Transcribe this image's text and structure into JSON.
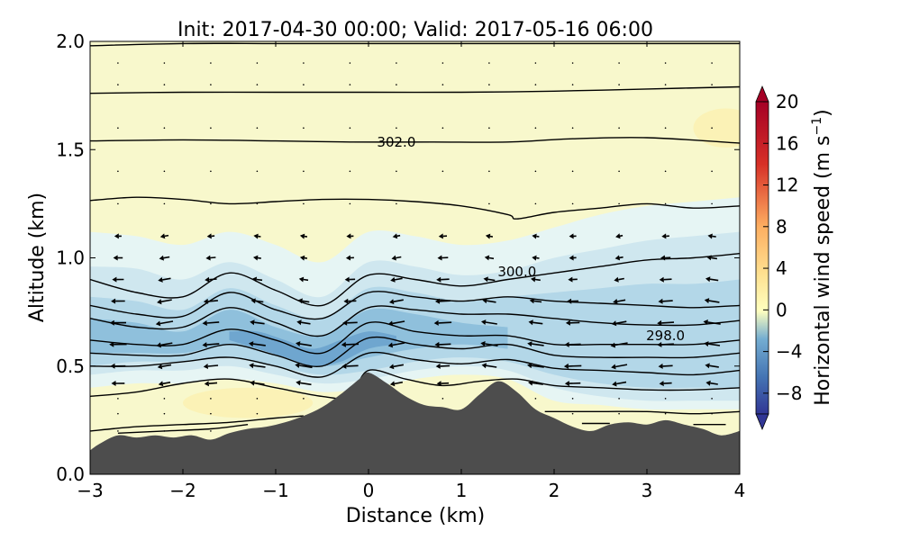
{
  "chart_data": {
    "type": "heatmap",
    "title": "Init: 2017-04-30 00:00; Valid: 2017-05-16 06:00",
    "xlabel": "Distance (km)",
    "ylabel": "Altitude (km)",
    "xlim": [
      -3,
      4
    ],
    "ylim": [
      0,
      2.0
    ],
    "xticks": [
      -3,
      -2,
      -1,
      0,
      1,
      2,
      3,
      4
    ],
    "xtick_labels": [
      "−3",
      "−2",
      "−1",
      "0",
      "1",
      "2",
      "3",
      "4"
    ],
    "yticks": [
      0.0,
      0.5,
      1.0,
      1.5,
      2.0
    ],
    "ytick_labels": [
      "0.0",
      "0.5",
      "1.0",
      "1.5",
      "2.0"
    ],
    "grid": false,
    "colorbar": {
      "label": "Horizontal wind speed (m s",
      "label_superscript": "−1",
      "label_end": ")",
      "range": [
        -10,
        20
      ],
      "extend": "both",
      "ticks": [
        20,
        16,
        12,
        8,
        4,
        0,
        -4,
        -8
      ],
      "tick_labels": [
        "20",
        "16",
        "12",
        "8",
        "4",
        "0",
        "−4",
        "−8"
      ],
      "colors": {
        "min": "#313695",
        "neg": "#4575b4",
        "negmid": "#74add1",
        "neglight": "#e0f3f8",
        "zero": "#ffffbf",
        "poslight": "#fee090",
        "posmid": "#fdae61",
        "pos": "#d73027",
        "max": "#a50026"
      }
    },
    "terrain": {
      "color": "#4d4d4d",
      "x": [
        -3.0,
        -2.9,
        -2.7,
        -2.5,
        -2.3,
        -2.1,
        -1.9,
        -1.7,
        -1.5,
        -1.3,
        -1.1,
        -0.9,
        -0.7,
        -0.5,
        -0.3,
        -0.1,
        0.0,
        0.2,
        0.4,
        0.6,
        0.8,
        1.0,
        1.2,
        1.4,
        1.6,
        1.8,
        2.0,
        2.2,
        2.4,
        2.6,
        2.8,
        3.0,
        3.2,
        3.4,
        3.6,
        3.8,
        4.0
      ],
      "y": [
        0.11,
        0.14,
        0.18,
        0.17,
        0.18,
        0.17,
        0.18,
        0.16,
        0.19,
        0.21,
        0.22,
        0.24,
        0.27,
        0.31,
        0.37,
        0.44,
        0.47,
        0.42,
        0.36,
        0.32,
        0.31,
        0.3,
        0.37,
        0.43,
        0.38,
        0.3,
        0.26,
        0.22,
        0.2,
        0.23,
        0.24,
        0.23,
        0.25,
        0.23,
        0.21,
        0.18,
        0.2
      ]
    },
    "speed_field": [
      {
        "value": -1.5,
        "color": "#e6f5f4",
        "x": [
          -3,
          -2.5,
          -2,
          -1.5,
          -1,
          -0.5,
          0,
          0.5,
          1,
          1.5,
          2,
          2.5,
          3,
          3.5,
          4
        ],
        "top": [
          1.12,
          1.1,
          1.06,
          1.12,
          1.06,
          0.98,
          1.12,
          1.1,
          1.06,
          1.08,
          1.14,
          1.2,
          1.24,
          1.26,
          1.28
        ],
        "bottom": [
          0.4,
          0.42,
          0.42,
          0.44,
          0.42,
          0.38,
          0.4,
          0.44,
          0.46,
          0.44,
          0.34,
          0.32,
          0.3,
          0.3,
          0.3
        ]
      },
      {
        "value": -3.0,
        "color": "#cfe7ef",
        "x": [
          -3,
          -2.5,
          -2,
          -1.5,
          -1,
          -0.5,
          0,
          0.5,
          1,
          1.5,
          2,
          2.5,
          3,
          3.5,
          4
        ],
        "top": [
          0.96,
          0.95,
          0.9,
          0.98,
          0.9,
          0.82,
          0.98,
          0.96,
          0.92,
          0.94,
          1.0,
          1.04,
          1.08,
          1.1,
          1.12
        ],
        "bottom": [
          0.46,
          0.48,
          0.48,
          0.5,
          0.46,
          0.42,
          0.44,
          0.48,
          0.5,
          0.48,
          0.4,
          0.36,
          0.34,
          0.34,
          0.34
        ]
      },
      {
        "value": -4.5,
        "color": "#b3d7e8",
        "x": [
          -3,
          -2.5,
          -2,
          -1.5,
          -1,
          -0.5,
          0,
          0.5,
          1,
          1.5,
          2,
          2.5,
          3,
          3.5,
          4
        ],
        "top": [
          0.82,
          0.8,
          0.76,
          0.86,
          0.78,
          0.72,
          0.86,
          0.84,
          0.8,
          0.82,
          0.84,
          0.86,
          0.88,
          0.88,
          0.9
        ],
        "bottom": [
          0.5,
          0.52,
          0.52,
          0.54,
          0.5,
          0.46,
          0.48,
          0.52,
          0.54,
          0.52,
          0.46,
          0.42,
          0.4,
          0.4,
          0.4
        ]
      },
      {
        "value": -6.0,
        "color": "#8fc0dc",
        "x": [
          -3,
          -2.5,
          -2,
          -1.5,
          -1,
          -0.5,
          0,
          0.5,
          1,
          1.5
        ],
        "top": [
          0.72,
          0.7,
          0.66,
          0.76,
          0.68,
          0.64,
          0.76,
          0.74,
          0.7,
          0.68
        ],
        "bottom": [
          0.56,
          0.56,
          0.56,
          0.6,
          0.56,
          0.5,
          0.54,
          0.58,
          0.6,
          0.58
        ]
      },
      {
        "value": -7.5,
        "color": "#6fa6cf",
        "x": [
          -1.5,
          -1.2,
          -0.9,
          -0.6,
          -0.3,
          0,
          0.3
        ],
        "top": [
          0.66,
          0.66,
          0.62,
          0.58,
          0.62,
          0.66,
          0.64
        ],
        "bottom": [
          0.62,
          0.58,
          0.54,
          0.5,
          0.52,
          0.58,
          0.6
        ]
      }
    ],
    "warm_patches": [
      {
        "value": 1.0,
        "color": "#fbf2b6",
        "cx": -1.3,
        "cy": 0.33,
        "rx": 0.7,
        "ry": 0.07
      },
      {
        "value": 1.0,
        "color": "#fbf2b6",
        "cx": 3.85,
        "cy": 1.6,
        "rx": 0.35,
        "ry": 0.09
      }
    ],
    "isentropes": [
      {
        "x": [
          -3,
          -2,
          -1,
          0,
          1,
          2,
          3,
          4
        ],
        "y": [
          1.98,
          1.99,
          1.99,
          1.99,
          1.99,
          1.99,
          1.99,
          1.99
        ]
      },
      {
        "x": [
          -3,
          -2,
          -1,
          0,
          1,
          2,
          3,
          4
        ],
        "y": [
          1.76,
          1.765,
          1.765,
          1.765,
          1.765,
          1.77,
          1.78,
          1.79
        ]
      },
      {
        "x": [
          -3,
          -2,
          -1,
          -0.2,
          0.7,
          1.5,
          2.2,
          3,
          4
        ],
        "y": [
          1.54,
          1.545,
          1.54,
          1.535,
          1.535,
          1.535,
          1.55,
          1.555,
          1.53
        ],
        "label": "302.0",
        "label_x": 0.3,
        "label_y": 1.535
      },
      {
        "x": [
          -3,
          -2.5,
          -2,
          -1.5,
          -1,
          -0.5,
          0,
          0.5,
          1,
          1.5,
          1.6,
          2,
          2.5,
          3,
          3.5,
          4
        ],
        "y": [
          1.265,
          1.28,
          1.27,
          1.25,
          1.26,
          1.27,
          1.27,
          1.26,
          1.24,
          1.2,
          1.18,
          1.21,
          1.23,
          1.25,
          1.23,
          1.24
        ]
      },
      {
        "x": [
          -3,
          -2.5,
          -2,
          -1.5,
          -1,
          -0.5,
          0,
          0.5,
          1,
          1.5,
          2,
          2.5,
          3,
          3.5,
          4
        ],
        "y": [
          0.9,
          0.84,
          0.82,
          0.93,
          0.85,
          0.78,
          0.92,
          0.9,
          0.87,
          0.9,
          0.93,
          0.96,
          0.99,
          1.0,
          1.02
        ],
        "label": "300.0",
        "label_x": 1.6,
        "label_y": 0.935
      },
      {
        "x": [
          -3,
          -2.5,
          -2,
          -1.5,
          -1,
          -0.5,
          0,
          0.5,
          1,
          1.5,
          2,
          2.5,
          3,
          3.5,
          4
        ],
        "y": [
          0.78,
          0.74,
          0.73,
          0.84,
          0.76,
          0.72,
          0.84,
          0.82,
          0.8,
          0.82,
          0.8,
          0.79,
          0.78,
          0.77,
          0.78
        ]
      },
      {
        "x": [
          -3,
          -2.5,
          -2,
          -1.5,
          -1,
          -0.5,
          0,
          0.5,
          1,
          1.5,
          2,
          2.5,
          3,
          3.5,
          4
        ],
        "y": [
          0.72,
          0.68,
          0.68,
          0.77,
          0.7,
          0.64,
          0.77,
          0.76,
          0.74,
          0.74,
          0.72,
          0.7,
          0.69,
          0.69,
          0.71
        ],
        "label": "298.0",
        "label_x": 3.2,
        "label_y": 0.64
      },
      {
        "x": [
          -3,
          -2.5,
          -2,
          -1.5,
          -1,
          -0.5,
          0,
          0.5,
          1,
          1.5,
          2,
          2.5,
          3,
          3.5,
          4
        ],
        "y": [
          0.62,
          0.6,
          0.6,
          0.67,
          0.62,
          0.56,
          0.7,
          0.66,
          0.64,
          0.64,
          0.6,
          0.6,
          0.6,
          0.6,
          0.62
        ]
      },
      {
        "x": [
          -3,
          -2.5,
          -2,
          -1.5,
          -1,
          -0.5,
          0,
          0.5,
          1,
          1.5,
          2,
          2.5,
          3,
          3.5,
          4
        ],
        "y": [
          0.56,
          0.55,
          0.55,
          0.6,
          0.55,
          0.5,
          0.63,
          0.6,
          0.58,
          0.6,
          0.55,
          0.54,
          0.54,
          0.54,
          0.56
        ]
      },
      {
        "x": [
          -3,
          -2.5,
          -2,
          -1.5,
          -1,
          -0.5,
          0,
          0.5,
          1,
          1.5,
          2,
          2.5,
          3,
          3.5,
          4
        ],
        "y": [
          0.5,
          0.5,
          0.52,
          0.54,
          0.5,
          0.45,
          0.56,
          0.53,
          0.51,
          0.53,
          0.49,
          0.48,
          0.47,
          0.46,
          0.48
        ]
      },
      {
        "x": [
          -3,
          -2.5,
          -2,
          -1.5,
          -1,
          -0.5,
          -0.2,
          0,
          0.4,
          0.8,
          1.2,
          1.6,
          2,
          2.5,
          3,
          3.5,
          4
        ],
        "y": [
          0.36,
          0.38,
          0.42,
          0.44,
          0.4,
          0.36,
          0.36,
          0.48,
          0.44,
          0.41,
          0.43,
          0.44,
          0.41,
          0.4,
          0.39,
          0.39,
          0.4
        ]
      },
      {
        "x": [
          -3,
          -2.5,
          -2,
          -1.5,
          -1,
          -0.7
        ],
        "y": [
          0.2,
          0.22,
          0.23,
          0.24,
          0.26,
          0.27
        ]
      },
      {
        "x": [
          -2.7,
          -2.2,
          -1.7,
          -1.3
        ],
        "y": [
          0.19,
          0.2,
          0.21,
          0.23
        ]
      },
      {
        "x": [
          1.9,
          2.5,
          3,
          3.5,
          4
        ],
        "y": [
          0.29,
          0.29,
          0.29,
          0.28,
          0.29
        ]
      },
      {
        "x": [
          2.3,
          2.6
        ],
        "y": [
          0.235,
          0.235
        ]
      },
      {
        "x": [
          3.5,
          3.85
        ],
        "y": [
          0.23,
          0.23
        ]
      }
    ],
    "wind_vectors": {
      "x": [
        -2.7,
        -2.2,
        -1.7,
        -1.2,
        -0.7,
        -0.2,
        0.3,
        0.8,
        1.3,
        1.8,
        2.2,
        2.7,
        3.2,
        3.7
      ],
      "y": [
        1.9,
        1.8,
        1.6,
        1.4,
        1.25,
        1.1,
        1.0,
        0.9,
        0.8,
        0.7,
        0.6,
        0.5,
        0.42,
        0.35,
        0.28,
        0.2
      ],
      "units": "m s−1"
    }
  }
}
